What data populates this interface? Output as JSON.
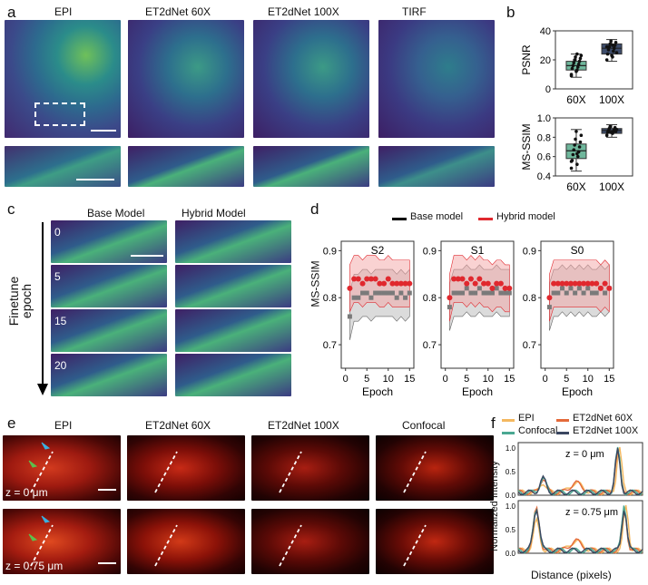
{
  "panels": {
    "a": "a",
    "b": "b",
    "c": "c",
    "d": "d",
    "e": "e",
    "f": "f"
  },
  "a": {
    "columns": [
      "EPI",
      "ET2dNet 60X",
      "ET2dNet 100X",
      "TIRF"
    ]
  },
  "b": {
    "chart_data": [
      {
        "type": "box",
        "title": "",
        "ylabel": "PSNR",
        "categories": [
          "60X",
          "100X"
        ],
        "ylim": [
          0,
          40
        ],
        "yticks": [
          "0",
          "20",
          "40"
        ],
        "boxes": [
          {
            "q1": 13,
            "median": 16,
            "q3": 19,
            "min": 8,
            "max": 24,
            "color": "#6fb79c"
          },
          {
            "q1": 24,
            "median": 28,
            "q3": 31,
            "min": 19,
            "max": 34,
            "color": "#3d4c6b"
          }
        ],
        "points": [
          [
            10,
            13,
            14,
            15,
            16,
            17,
            18,
            19,
            20,
            21,
            22,
            23,
            12,
            9,
            24
          ],
          [
            20,
            22,
            24,
            26,
            27,
            28,
            29,
            30,
            31,
            32,
            33,
            25,
            23,
            29,
            30
          ]
        ]
      },
      {
        "type": "box",
        "title": "",
        "ylabel": "MS-SSIM",
        "categories": [
          "60X",
          "100X"
        ],
        "ylim": [
          0.4,
          1.0
        ],
        "yticks": [
          "0.4",
          "0.6",
          "0.8",
          "1.0"
        ],
        "boxes": [
          {
            "q1": 0.58,
            "median": 0.66,
            "q3": 0.73,
            "min": 0.45,
            "max": 0.88,
            "color": "#6fb79c"
          },
          {
            "q1": 0.84,
            "median": 0.87,
            "q3": 0.89,
            "min": 0.8,
            "max": 0.93,
            "color": "#3d4c6b"
          }
        ],
        "points": [
          [
            0.48,
            0.52,
            0.56,
            0.6,
            0.62,
            0.65,
            0.67,
            0.7,
            0.72,
            0.75,
            0.78,
            0.82,
            0.86,
            0.55,
            0.63
          ],
          [
            0.82,
            0.84,
            0.85,
            0.86,
            0.87,
            0.88,
            0.89,
            0.9,
            0.91,
            0.86,
            0.85,
            0.88
          ]
        ]
      }
    ],
    "xticks": [
      "60X",
      "100X"
    ]
  },
  "c": {
    "columns": [
      "Base Model",
      "Hybrid Model"
    ],
    "rows": [
      "0",
      "5",
      "15",
      "20"
    ],
    "axis_label": "Finetune epoch",
    "axis_line1": "Finetune",
    "axis_line2": "epoch"
  },
  "d": {
    "legend": [
      {
        "name": "Base model",
        "color": "#000000"
      },
      {
        "name": "Hybrid model",
        "color": "#e0282e"
      }
    ],
    "ylabel": "MS-SSIM",
    "xlabel": "Epoch",
    "yticks": [
      "0.7",
      "0.8",
      "0.9"
    ],
    "xticks": [
      "0",
      "5",
      "10",
      "15"
    ],
    "chart_data": [
      {
        "type": "line",
        "title": "S2",
        "xlim": [
          -1,
          16
        ],
        "ylim": [
          0.65,
          0.92
        ],
        "series": [
          {
            "name": "Base model",
            "x": [
              1,
              2,
              3,
              4,
              5,
              6,
              7,
              8,
              9,
              10,
              11,
              12,
              13,
              14,
              15
            ],
            "y": [
              0.76,
              0.8,
              0.8,
              0.81,
              0.81,
              0.8,
              0.81,
              0.81,
              0.81,
              0.81,
              0.81,
              0.8,
              0.81,
              0.8,
              0.81
            ]
          },
          {
            "name": "Hybrid model",
            "x": [
              1,
              2,
              3,
              4,
              5,
              6,
              7,
              8,
              9,
              10,
              11,
              12,
              13,
              14,
              15
            ],
            "y": [
              0.82,
              0.84,
              0.84,
              0.83,
              0.84,
              0.84,
              0.84,
              0.83,
              0.83,
              0.84,
              0.83,
              0.83,
              0.83,
              0.83,
              0.83
            ]
          }
        ]
      },
      {
        "type": "line",
        "title": "S1",
        "xlim": [
          -1,
          16
        ],
        "ylim": [
          0.65,
          0.92
        ],
        "series": [
          {
            "name": "Base model",
            "x": [
              1,
              2,
              3,
              4,
              5,
              6,
              7,
              8,
              9,
              10,
              11,
              12,
              13,
              14,
              15
            ],
            "y": [
              0.78,
              0.81,
              0.81,
              0.81,
              0.82,
              0.81,
              0.81,
              0.82,
              0.81,
              0.81,
              0.81,
              0.82,
              0.81,
              0.81,
              0.81
            ]
          },
          {
            "name": "Hybrid model",
            "x": [
              1,
              2,
              3,
              4,
              5,
              6,
              7,
              8,
              9,
              10,
              11,
              12,
              13,
              14,
              15
            ],
            "y": [
              0.8,
              0.84,
              0.84,
              0.84,
              0.83,
              0.84,
              0.83,
              0.84,
              0.83,
              0.83,
              0.82,
              0.83,
              0.83,
              0.82,
              0.82
            ]
          }
        ]
      },
      {
        "type": "line",
        "title": "S0",
        "xlim": [
          -1,
          16
        ],
        "ylim": [
          0.65,
          0.92
        ],
        "series": [
          {
            "name": "Base model",
            "x": [
              1,
              2,
              3,
              4,
              5,
              6,
              7,
              8,
              9,
              10,
              11,
              12,
              13,
              14,
              15
            ],
            "y": [
              0.78,
              0.81,
              0.81,
              0.82,
              0.81,
              0.82,
              0.81,
              0.82,
              0.81,
              0.82,
              0.81,
              0.81,
              0.82,
              0.81,
              0.82
            ]
          },
          {
            "name": "Hybrid model",
            "x": [
              1,
              2,
              3,
              4,
              5,
              6,
              7,
              8,
              9,
              10,
              11,
              12,
              13,
              14,
              15
            ],
            "y": [
              0.8,
              0.83,
              0.83,
              0.83,
              0.83,
              0.83,
              0.83,
              0.83,
              0.83,
              0.83,
              0.83,
              0.83,
              0.82,
              0.83,
              0.82
            ]
          }
        ]
      }
    ]
  },
  "e": {
    "columns": [
      "EPI",
      "ET2dNet 60X",
      "ET2dNet 100X",
      "Confocal"
    ],
    "rows": [
      "z = 0 μm",
      "z = 0.75 μm"
    ]
  },
  "f": {
    "legend": [
      {
        "name": "EPI",
        "color": "#f4b860"
      },
      {
        "name": "ET2dNet 60X",
        "color": "#e46a3a"
      },
      {
        "name": "Confocal",
        "color": "#4aa892"
      },
      {
        "name": "ET2dNet 100X",
        "color": "#3a4660"
      }
    ],
    "ylabel": "Normalized Intensity",
    "xlabel": "Distance (pixels)",
    "yticks": [
      "0.0",
      "0.5",
      "1.0"
    ],
    "annotations": [
      "z = 0 μm",
      "z = 0.75 μm"
    ]
  }
}
